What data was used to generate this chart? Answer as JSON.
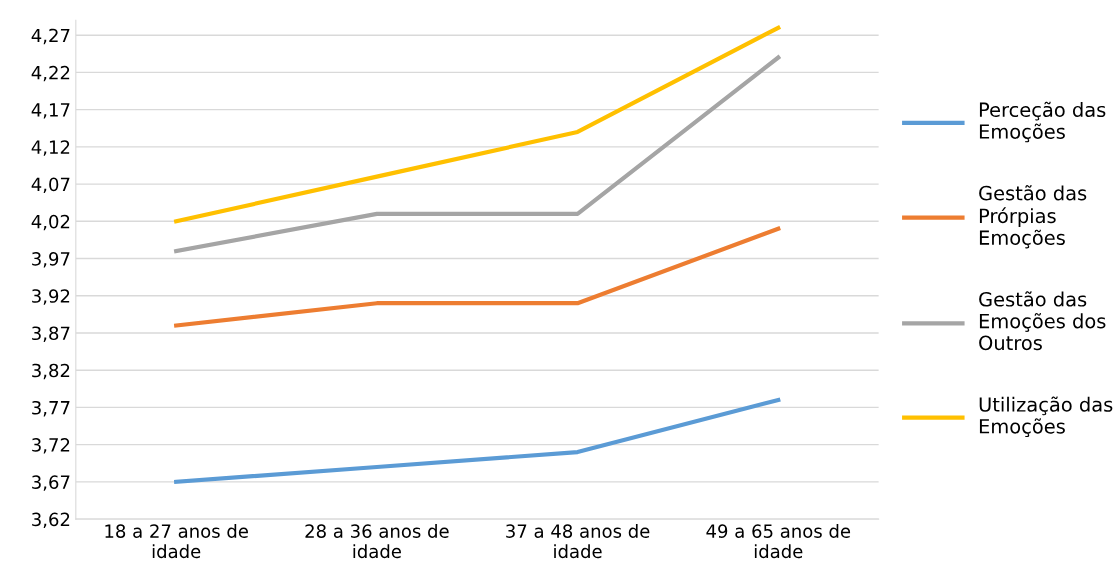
{
  "chart_data": {
    "type": "line",
    "categories": [
      "18 a 27 anos de\nidade",
      "28 a 36 anos de\nidade",
      "37 a 48 anos de\nidade",
      "49 a 65 anos de\nidade"
    ],
    "series": [
      {
        "name": "Perceção das\nEmoções",
        "color": "#5b9bd5",
        "values": [
          3.67,
          3.69,
          3.71,
          3.78
        ]
      },
      {
        "name": "Gestão das\nPrórpias\nEmoções",
        "color": "#ed7d31",
        "values": [
          3.88,
          3.91,
          3.91,
          4.01
        ]
      },
      {
        "name": "Gestão das\nEmoções dos\nOutros",
        "color": "#a5a5a5",
        "values": [
          3.98,
          4.03,
          4.03,
          4.24
        ]
      },
      {
        "name": "Utilização das\nEmoções",
        "color": "#ffc000",
        "values": [
          4.02,
          4.08,
          4.14,
          4.28
        ]
      }
    ],
    "ylim": [
      3.62,
      4.29
    ],
    "yticks": [
      {
        "value": 3.62,
        "label": "3,62"
      },
      {
        "value": 3.67,
        "label": "3,67"
      },
      {
        "value": 3.72,
        "label": "3,72"
      },
      {
        "value": 3.77,
        "label": "3,77"
      },
      {
        "value": 3.82,
        "label": "3,82"
      },
      {
        "value": 3.87,
        "label": "3,87"
      },
      {
        "value": 3.92,
        "label": "3,92"
      },
      {
        "value": 3.97,
        "label": "3,97"
      },
      {
        "value": 4.02,
        "label": "4,02"
      },
      {
        "value": 4.07,
        "label": "4,07"
      },
      {
        "value": 4.12,
        "label": "4,12"
      },
      {
        "value": 4.17,
        "label": "4,17"
      },
      {
        "value": 4.22,
        "label": "4,22"
      },
      {
        "value": 4.27,
        "label": "4,27"
      }
    ],
    "grid": "y",
    "legend": "right",
    "marker": "none",
    "line_style": "solid"
  }
}
